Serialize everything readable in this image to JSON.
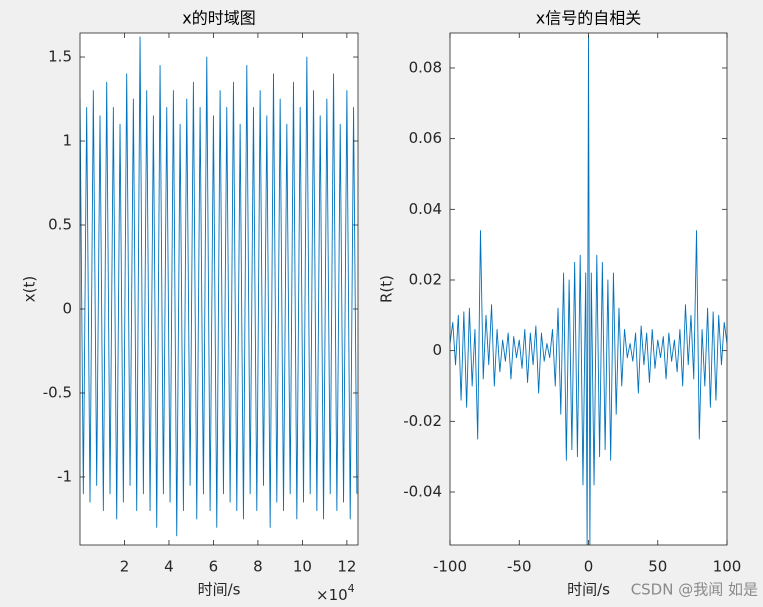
{
  "chart_data": [
    {
      "type": "line",
      "title": "x的时域图",
      "xlabel": "时间/s",
      "ylabel": "x(t)",
      "x_multiplier": {
        "base": "×10",
        "exponent": "4"
      },
      "color": "#0072bd",
      "xlim": [
        0,
        125000
      ],
      "ylim": [
        -1.405,
        1.643
      ],
      "xticks": [
        {
          "value": 20000,
          "label": "2"
        },
        {
          "value": 40000,
          "label": "4"
        },
        {
          "value": 60000,
          "label": "6"
        },
        {
          "value": 80000,
          "label": "8"
        },
        {
          "value": 100000,
          "label": "10"
        },
        {
          "value": 120000,
          "label": "12"
        }
      ],
      "yticks": [
        -1,
        -0.5,
        0,
        0.5,
        1,
        1.5
      ],
      "x": [
        0,
        1500,
        3000,
        4500,
        6000,
        7500,
        9000,
        10500,
        12000,
        13500,
        15000,
        16500,
        18000,
        19500,
        21000,
        22500,
        24000,
        25500,
        27000,
        28500,
        30000,
        31500,
        33000,
        34500,
        36000,
        37500,
        39000,
        40500,
        42000,
        43500,
        45000,
        46500,
        48000,
        49500,
        51000,
        52500,
        54000,
        55500,
        57000,
        58500,
        60000,
        61500,
        63000,
        64500,
        66000,
        67500,
        69000,
        70500,
        72000,
        73500,
        75000,
        76500,
        78000,
        79500,
        81000,
        82500,
        84000,
        85500,
        87000,
        88500,
        90000,
        91500,
        93000,
        94500,
        96000,
        97500,
        99000,
        100500,
        102000,
        103500,
        105000,
        106500,
        108000,
        109500,
        111000,
        112500,
        114000,
        115500,
        117000,
        118500,
        120000,
        121500,
        123000,
        124500
      ],
      "values": [
        1.25,
        -1.1,
        1.2,
        -1.15,
        1.3,
        -1.05,
        1.15,
        -1.2,
        1.35,
        -1.1,
        1.2,
        -1.25,
        1.1,
        -1.15,
        1.4,
        -1.05,
        1.25,
        -1.2,
        1.62,
        -1.1,
        1.3,
        -1.2,
        1.15,
        -1.3,
        1.45,
        -1.1,
        1.2,
        -1.15,
        1.3,
        -1.35,
        1.1,
        -1.2,
        1.25,
        -1.05,
        1.35,
        -1.25,
        1.2,
        -1.1,
        1.5,
        -1.2,
        1.15,
        -1.3,
        1.3,
        -1.1,
        1.2,
        -1.15,
        1.35,
        -1.2,
        1.1,
        -1.25,
        1.45,
        -1.1,
        1.2,
        -1.2,
        1.3,
        -1.05,
        1.15,
        -1.3,
        1.4,
        -1.15,
        1.25,
        -1.2,
        1.1,
        -1.1,
        1.35,
        -1.25,
        1.2,
        -1.15,
        1.5,
        -1.1,
        1.3,
        -1.2,
        1.15,
        -1.25,
        1.25,
        -1.1,
        1.4,
        -1.2,
        1.1,
        -1.15,
        1.3,
        -1.25,
        1.2,
        -1.1
      ]
    },
    {
      "type": "line",
      "title": "x信号的自相关",
      "xlabel": "时间/s",
      "ylabel": "R(t)",
      "color": "#0072bd",
      "xlim": [
        -100,
        100
      ],
      "ylim": [
        -0.055,
        0.0899
      ],
      "xticks": [
        -100,
        -50,
        0,
        50,
        100
      ],
      "yticks": [
        -0.04,
        -0.02,
        0,
        0.02,
        0.04,
        0.06,
        0.08
      ],
      "x": [
        -100,
        -98,
        -96,
        -94,
        -92,
        -90,
        -88,
        -86,
        -84,
        -82,
        -80,
        -78,
        -76,
        -74,
        -72,
        -70,
        -68,
        -66,
        -64,
        -62,
        -60,
        -58,
        -56,
        -54,
        -52,
        -50,
        -48,
        -46,
        -44,
        -42,
        -40,
        -38,
        -36,
        -34,
        -32,
        -30,
        -28,
        -26,
        -24,
        -22,
        -20,
        -18,
        -16,
        -14,
        -12,
        -10,
        -8,
        -6,
        -4,
        -2,
        -1,
        0,
        1,
        2,
        4,
        6,
        8,
        10,
        12,
        14,
        16,
        18,
        20,
        22,
        24,
        26,
        28,
        30,
        32,
        34,
        36,
        38,
        40,
        42,
        44,
        46,
        48,
        50,
        52,
        54,
        56,
        58,
        60,
        62,
        64,
        66,
        68,
        70,
        72,
        74,
        76,
        78,
        80,
        82,
        84,
        86,
        88,
        90,
        92,
        94,
        96,
        98,
        100
      ],
      "values": [
        0.002,
        0.008,
        -0.004,
        0.01,
        -0.014,
        0.011,
        -0.016,
        0.012,
        -0.01,
        0.006,
        -0.025,
        0.034,
        -0.008,
        0.01,
        -0.004,
        0.013,
        -0.01,
        0.006,
        -0.006,
        0.003,
        -0.003,
        0.005,
        -0.008,
        0.004,
        -0.002,
        0.003,
        -0.005,
        0.006,
        -0.009,
        0.005,
        -0.004,
        0.007,
        -0.012,
        0.005,
        -0.003,
        0.002,
        -0.002,
        0.006,
        -0.01,
        0.012,
        -0.018,
        0.022,
        -0.031,
        0.02,
        -0.028,
        0.025,
        -0.03,
        0.027,
        -0.038,
        0.022,
        -0.055,
        0.089,
        -0.055,
        0.022,
        -0.038,
        0.027,
        -0.03,
        0.025,
        -0.028,
        0.02,
        -0.031,
        0.022,
        -0.018,
        0.012,
        -0.01,
        0.006,
        -0.002,
        0.002,
        -0.003,
        0.005,
        -0.012,
        0.007,
        -0.004,
        0.005,
        -0.009,
        0.006,
        -0.005,
        0.003,
        -0.002,
        0.004,
        -0.008,
        0.005,
        -0.003,
        0.003,
        -0.006,
        0.006,
        -0.01,
        0.013,
        -0.004,
        0.01,
        -0.008,
        0.034,
        -0.025,
        0.006,
        -0.01,
        0.012,
        -0.016,
        0.011,
        -0.014,
        0.01,
        -0.004,
        0.008,
        0.002
      ]
    }
  ],
  "watermark": "CSDN @我闻 如是"
}
